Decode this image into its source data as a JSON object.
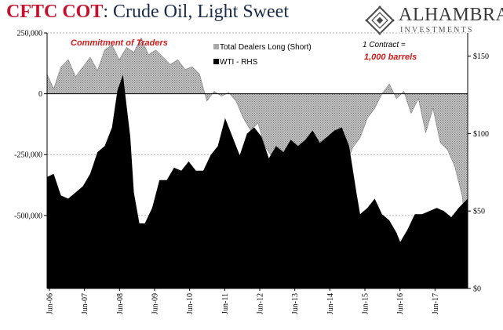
{
  "title_part1": "CFTC COT",
  "title_part2": ": Crude Oil, Light Sweet",
  "logo": {
    "name": "ALHAMBRA",
    "sub": "INVESTMENTS"
  },
  "colors": {
    "dealers": "#a8a8a8",
    "wti": "#000000",
    "accent_red": "#d21b1b",
    "title_blue": "#1a2a4a"
  },
  "chart_data": {
    "type": "area",
    "annotation_left": "Commitment of Traders",
    "annotation_right_1": "1 Contract =",
    "annotation_right_2": "1,000 barrels",
    "left_ticks": [
      "250,000",
      "0",
      "-250,000",
      "-500,000"
    ],
    "right_ticks": [
      "$150",
      "$100",
      "$50",
      "$0"
    ],
    "left_ylim": [
      -800000,
      250000
    ],
    "right_ylim": [
      0,
      165
    ],
    "x_ticks": [
      "Jun-06",
      "Jun-07",
      "Jun-08",
      "Jun-09",
      "Jun-10",
      "Jun-11",
      "Jun-12",
      "Jun-13",
      "Jun-14",
      "Jun-15",
      "Jun-16",
      "Jun-17"
    ],
    "grid": true,
    "series": [
      {
        "name": "Total Dealers Long (Short)",
        "axis": "left",
        "x": [
          2006.42,
          2006.6,
          2006.8,
          2007.0,
          2007.2,
          2007.4,
          2007.6,
          2007.8,
          2008.0,
          2008.2,
          2008.4,
          2008.6,
          2008.8,
          2009.0,
          2009.2,
          2009.4,
          2009.6,
          2009.8,
          2010.0,
          2010.2,
          2010.4,
          2010.6,
          2010.8,
          2011.0,
          2011.2,
          2011.4,
          2011.6,
          2011.8,
          2012.0,
          2012.2,
          2012.4,
          2012.6,
          2012.8,
          2013.0,
          2013.2,
          2013.4,
          2013.6,
          2013.8,
          2014.0,
          2014.2,
          2014.4,
          2014.6,
          2014.8,
          2015.0,
          2015.2,
          2015.4,
          2015.6,
          2015.8,
          2016.0,
          2016.2,
          2016.4,
          2016.6,
          2016.8,
          2017.0,
          2017.2,
          2017.4,
          2017.6,
          2017.8,
          2017.95
        ],
        "values": [
          80000,
          20000,
          110000,
          140000,
          70000,
          110000,
          150000,
          95000,
          180000,
          200000,
          140000,
          190000,
          170000,
          230000,
          160000,
          180000,
          150000,
          120000,
          140000,
          100000,
          110000,
          80000,
          -30000,
          10000,
          -10000,
          5000,
          -30000,
          -100000,
          -150000,
          -120000,
          -220000,
          -260000,
          -300000,
          -330000,
          -380000,
          -350000,
          -400000,
          -430000,
          -400000,
          -380000,
          -350000,
          -300000,
          -220000,
          -180000,
          -100000,
          -60000,
          0,
          40000,
          -20000,
          10000,
          -80000,
          -20000,
          -160000,
          -60000,
          -200000,
          -230000,
          -300000,
          -420000,
          -620000
        ]
      },
      {
        "name": "WTI - RHS",
        "axis": "right",
        "x": [
          2006.42,
          2006.6,
          2006.8,
          2007.0,
          2007.2,
          2007.4,
          2007.6,
          2007.8,
          2008.0,
          2008.2,
          2008.35,
          2008.5,
          2008.6,
          2008.7,
          2008.8,
          2008.95,
          2009.1,
          2009.3,
          2009.5,
          2009.7,
          2009.9,
          2010.1,
          2010.3,
          2010.5,
          2010.7,
          2010.9,
          2011.1,
          2011.3,
          2011.5,
          2011.7,
          2011.9,
          2012.1,
          2012.3,
          2012.5,
          2012.7,
          2012.9,
          2013.1,
          2013.3,
          2013.5,
          2013.7,
          2013.9,
          2014.1,
          2014.3,
          2014.5,
          2014.7,
          2014.9,
          2015.0,
          2015.2,
          2015.4,
          2015.6,
          2015.8,
          2016.0,
          2016.1,
          2016.3,
          2016.5,
          2016.7,
          2016.9,
          2017.1,
          2017.3,
          2017.5,
          2017.7,
          2017.95
        ],
        "values": [
          72,
          74,
          60,
          58,
          62,
          66,
          74,
          88,
          92,
          104,
          128,
          138,
          118,
          98,
          62,
          42,
          42,
          52,
          70,
          70,
          78,
          76,
          82,
          76,
          76,
          86,
          92,
          110,
          98,
          86,
          100,
          104,
          98,
          84,
          92,
          88,
          96,
          92,
          96,
          102,
          94,
          98,
          102,
          104,
          92,
          62,
          48,
          52,
          58,
          48,
          44,
          36,
          30,
          38,
          48,
          48,
          50,
          52,
          50,
          46,
          52,
          58
        ]
      }
    ]
  }
}
